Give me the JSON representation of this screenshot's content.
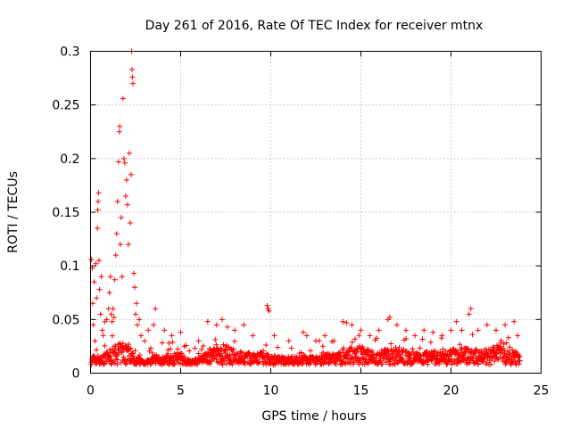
{
  "chart_data": {
    "type": "scatter",
    "title": "Day 261 of 2016, Rate Of TEC Index for receiver mtnx",
    "xlabel": "GPS time / hours",
    "ylabel": "ROTI / TECUs",
    "xlim": [
      0,
      25
    ],
    "ylim": [
      0,
      0.3
    ],
    "xticks": [
      0,
      5,
      10,
      15,
      20,
      25
    ],
    "xtick_labels": [
      "0",
      "5",
      "10",
      "15",
      "20",
      "25"
    ],
    "yticks": [
      0,
      0.05,
      0.1,
      0.15,
      0.2,
      0.25,
      0.3
    ],
    "ytick_labels": [
      "0",
      "0.05",
      "0.1",
      "0.15",
      "0.2",
      "0.25",
      "0.3"
    ],
    "grid": true,
    "marker": "+",
    "color": "#ff0000",
    "series": [
      {
        "name": "ROTI",
        "points": [
          [
            0.05,
            0.106
          ],
          [
            0.1,
            0.098
          ],
          [
            0.12,
            0.065
          ],
          [
            0.15,
            0.045
          ],
          [
            0.2,
            0.085
          ],
          [
            0.25,
            0.03
          ],
          [
            0.3,
            0.102
          ],
          [
            0.33,
            0.07
          ],
          [
            0.38,
            0.135
          ],
          [
            0.4,
            0.152
          ],
          [
            0.42,
            0.16
          ],
          [
            0.45,
            0.168
          ],
          [
            0.47,
            0.105
          ],
          [
            0.5,
            0.078
          ],
          [
            0.55,
            0.055
          ],
          [
            0.6,
            0.09
          ],
          [
            0.65,
            0.04
          ],
          [
            0.7,
            0.035
          ],
          [
            0.8,
            0.048
          ],
          [
            0.9,
            0.05
          ],
          [
            1.0,
            0.06
          ],
          [
            1.05,
            0.075
          ],
          [
            1.1,
            0.09
          ],
          [
            1.15,
            0.055
          ],
          [
            1.2,
            0.048
          ],
          [
            1.25,
            0.06
          ],
          [
            1.3,
            0.052
          ],
          [
            1.35,
            0.087
          ],
          [
            1.4,
            0.11
          ],
          [
            1.45,
            0.13
          ],
          [
            1.5,
            0.16
          ],
          [
            1.55,
            0.197
          ],
          [
            1.6,
            0.225
          ],
          [
            1.62,
            0.23
          ],
          [
            1.65,
            0.12
          ],
          [
            1.7,
            0.145
          ],
          [
            1.75,
            0.09
          ],
          [
            1.8,
            0.256
          ],
          [
            1.85,
            0.2
          ],
          [
            1.9,
            0.196
          ],
          [
            1.95,
            0.165
          ],
          [
            2.0,
            0.18
          ],
          [
            2.05,
            0.157
          ],
          [
            2.1,
            0.12
          ],
          [
            2.15,
            0.205
          ],
          [
            2.2,
            0.14
          ],
          [
            2.25,
            0.185
          ],
          [
            2.28,
            0.3
          ],
          [
            2.3,
            0.283
          ],
          [
            2.32,
            0.276
          ],
          [
            2.35,
            0.27
          ],
          [
            2.4,
            0.093
          ],
          [
            2.45,
            0.08
          ],
          [
            2.5,
            0.055
          ],
          [
            2.55,
            0.065
          ],
          [
            2.6,
            0.045
          ],
          [
            2.7,
            0.05
          ],
          [
            2.8,
            0.035
          ],
          [
            3.0,
            0.03
          ],
          [
            3.2,
            0.04
          ],
          [
            3.5,
            0.045
          ],
          [
            3.6,
            0.06
          ],
          [
            4.1,
            0.04
          ],
          [
            4.5,
            0.035
          ],
          [
            5.0,
            0.038
          ],
          [
            5.2,
            0.025
          ],
          [
            6.0,
            0.03
          ],
          [
            6.5,
            0.048
          ],
          [
            7.0,
            0.045
          ],
          [
            7.3,
            0.05
          ],
          [
            7.6,
            0.043
          ],
          [
            8.0,
            0.04
          ],
          [
            8.5,
            0.045
          ],
          [
            9.0,
            0.035
          ],
          [
            9.8,
            0.063
          ],
          [
            9.85,
            0.06
          ],
          [
            9.9,
            0.058
          ],
          [
            10.2,
            0.035
          ],
          [
            11.0,
            0.03
          ],
          [
            11.8,
            0.038
          ],
          [
            12.0,
            0.035
          ],
          [
            12.5,
            0.03
          ],
          [
            13.0,
            0.035
          ],
          [
            13.5,
            0.03
          ],
          [
            14.0,
            0.048
          ],
          [
            14.2,
            0.047
          ],
          [
            14.5,
            0.045
          ],
          [
            15.0,
            0.04
          ],
          [
            15.5,
            0.035
          ],
          [
            16.0,
            0.04
          ],
          [
            16.5,
            0.05
          ],
          [
            16.6,
            0.052
          ],
          [
            17.0,
            0.045
          ],
          [
            17.5,
            0.04
          ],
          [
            18.0,
            0.035
          ],
          [
            18.5,
            0.04
          ],
          [
            19.0,
            0.038
          ],
          [
            19.5,
            0.035
          ],
          [
            20.0,
            0.04
          ],
          [
            20.3,
            0.048
          ],
          [
            20.6,
            0.04
          ],
          [
            21.0,
            0.055
          ],
          [
            21.1,
            0.06
          ],
          [
            21.5,
            0.04
          ],
          [
            22.0,
            0.045
          ],
          [
            22.5,
            0.04
          ],
          [
            23.0,
            0.045
          ],
          [
            23.5,
            0.048
          ],
          [
            23.7,
            0.035
          ]
        ],
        "baseline": [
          [
            0.5,
            0.012
          ],
          [
            1.0,
            0.02
          ],
          [
            1.5,
            0.025
          ],
          [
            2.0,
            0.03
          ],
          [
            2.5,
            0.015
          ],
          [
            3.0,
            0.01
          ],
          [
            3.5,
            0.012
          ],
          [
            4.0,
            0.014
          ],
          [
            4.5,
            0.016
          ],
          [
            5.0,
            0.018
          ],
          [
            5.5,
            0.01
          ],
          [
            6.0,
            0.012
          ],
          [
            6.5,
            0.02
          ],
          [
            7.0,
            0.022
          ],
          [
            7.5,
            0.024
          ],
          [
            8.0,
            0.02
          ],
          [
            8.5,
            0.018
          ],
          [
            9.0,
            0.016
          ],
          [
            9.5,
            0.018
          ],
          [
            10.0,
            0.015
          ],
          [
            10.5,
            0.014
          ],
          [
            11.0,
            0.013
          ],
          [
            11.5,
            0.014
          ],
          [
            12.0,
            0.015
          ],
          [
            12.5,
            0.016
          ],
          [
            13.0,
            0.017
          ],
          [
            13.5,
            0.016
          ],
          [
            14.0,
            0.02
          ],
          [
            14.5,
            0.022
          ],
          [
            15.0,
            0.024
          ],
          [
            15.5,
            0.02
          ],
          [
            16.0,
            0.018
          ],
          [
            16.5,
            0.022
          ],
          [
            17.0,
            0.024
          ],
          [
            17.5,
            0.02
          ],
          [
            18.0,
            0.016
          ],
          [
            18.5,
            0.018
          ],
          [
            19.0,
            0.02
          ],
          [
            19.5,
            0.018
          ],
          [
            20.0,
            0.02
          ],
          [
            20.5,
            0.022
          ],
          [
            21.0,
            0.024
          ],
          [
            21.5,
            0.02
          ],
          [
            22.0,
            0.022
          ],
          [
            22.5,
            0.024
          ],
          [
            23.0,
            0.022
          ],
          [
            23.5,
            0.02
          ],
          [
            23.8,
            0.015
          ]
        ]
      }
    ]
  }
}
